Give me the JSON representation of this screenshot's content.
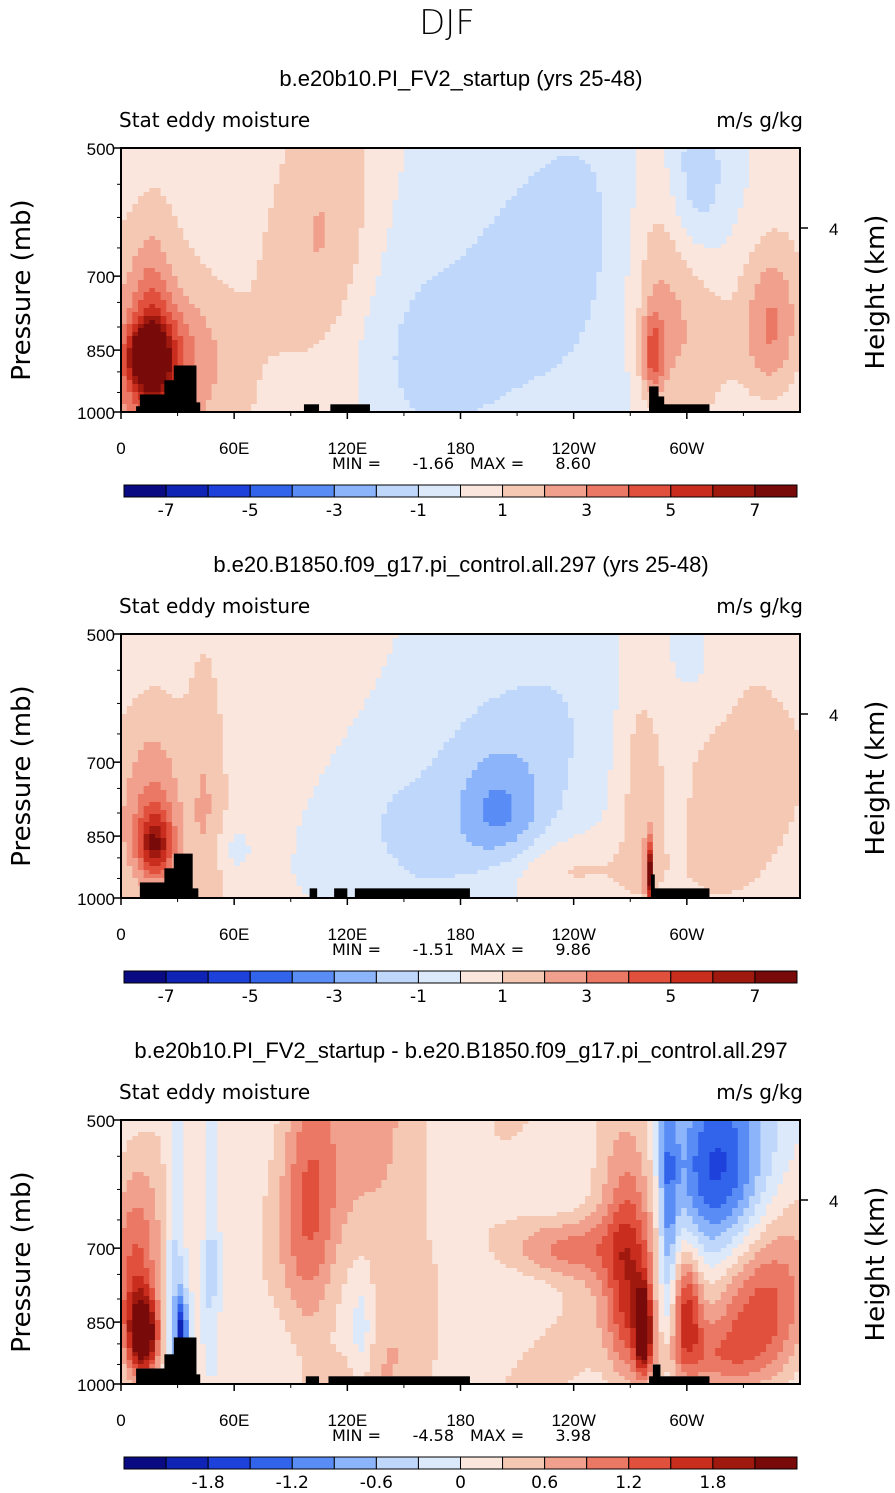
{
  "figure": {
    "title": "DJF"
  },
  "chart_data": [
    {
      "type": "heatmap",
      "title": "b.e20b10.PI_FV2_startup (yrs 25-48)",
      "left_title": "Stat eddy moisture",
      "right_title": "m/s g/kg",
      "ylabel": "Pressure (mb)",
      "y2label": "Height (km)",
      "y_ticks": [
        "500",
        "700",
        "850",
        "1000"
      ],
      "y2_ticks": [
        "4"
      ],
      "x_ticks": [
        "0",
        "60E",
        "120E",
        "180",
        "120W",
        "60W"
      ],
      "ylim": [
        1000,
        500
      ],
      "xlim": [
        0,
        360
      ],
      "stats": {
        "min_label": "MIN =",
        "min": "-1.66",
        "max_label": "MAX =",
        "max": "8.60"
      },
      "colorbar": {
        "colors": [
          "#0a0a82",
          "#0f23b4",
          "#1e41dc",
          "#3264eb",
          "#5a8cf5",
          "#8cb4fa",
          "#bed7fa",
          "#dce9fa",
          "#fae6dc",
          "#f5c8b4",
          "#f0a08c",
          "#eb7864",
          "#e1503c",
          "#c82d1e",
          "#a0190f",
          "#780a0a"
        ],
        "labels": [
          "-7",
          "-5",
          "-3",
          "-1",
          "1",
          "3",
          "5",
          "7"
        ]
      },
      "field": [
        {
          "lon": 0,
          "p": 960,
          "v": 2,
          "w": 70,
          "h": 300
        },
        {
          "lon": 14,
          "p": 865,
          "v": 6.8,
          "w": 9,
          "h": 60
        },
        {
          "lon": 18,
          "p": 900,
          "v": 4,
          "w": 15,
          "h": 140
        },
        {
          "lon": 16,
          "p": 760,
          "v": 1.6,
          "w": 10,
          "h": 150
        },
        {
          "lon": 35,
          "p": 850,
          "v": 1.2,
          "w": 20,
          "h": 120
        },
        {
          "lon": 108,
          "p": 650,
          "v": 1.6,
          "w": 28,
          "h": 260
        },
        {
          "lon": 195,
          "p": 760,
          "v": -1.2,
          "w": 55,
          "h": 450
        },
        {
          "lon": 155,
          "p": 900,
          "v": -1.1,
          "w": 35,
          "h": 200
        },
        {
          "lon": 242,
          "p": 720,
          "v": -1,
          "w": 40,
          "h": 400
        },
        {
          "lon": 282,
          "p": 860,
          "v": 3.4,
          "w": 6,
          "h": 90
        },
        {
          "lon": 285,
          "p": 720,
          "v": 1.2,
          "w": 14,
          "h": 260
        },
        {
          "lon": 305,
          "p": 540,
          "v": -2.2,
          "w": 18,
          "h": 130
        },
        {
          "lon": 300,
          "p": 800,
          "v": 1.5,
          "w": 22,
          "h": 250
        },
        {
          "lon": 345,
          "p": 800,
          "v": 2.6,
          "w": 15,
          "h": 160
        }
      ],
      "field_bias": 0.3,
      "topography": [
        {
          "lon_w": 8,
          "lon_e": 12,
          "p": 985
        },
        {
          "lon_w": 10,
          "lon_e": 24,
          "p": 955
        },
        {
          "lon_w": 23,
          "lon_e": 29,
          "p": 920
        },
        {
          "lon_w": 28,
          "lon_e": 40,
          "p": 885
        },
        {
          "lon_w": 36,
          "lon_e": 42,
          "p": 975
        },
        {
          "lon_w": 97,
          "lon_e": 105,
          "p": 980
        },
        {
          "lon_w": 111,
          "lon_e": 132,
          "p": 980
        },
        {
          "lon_w": 280,
          "lon_e": 285,
          "p": 935
        },
        {
          "lon_w": 282,
          "lon_e": 288,
          "p": 960
        },
        {
          "lon_w": 280,
          "lon_e": 312,
          "p": 980
        }
      ]
    },
    {
      "type": "heatmap",
      "title": "b.e20.B1850.f09_g17.pi_control.all.297 (yrs 25-48)",
      "left_title": "Stat eddy moisture",
      "right_title": "m/s g/kg",
      "ylabel": "Pressure (mb)",
      "y2label": "Height (km)",
      "y_ticks": [
        "500",
        "700",
        "850",
        "1000"
      ],
      "y2_ticks": [
        "4"
      ],
      "x_ticks": [
        "0",
        "60E",
        "120E",
        "180",
        "120W",
        "60W"
      ],
      "ylim": [
        1000,
        500
      ],
      "xlim": [
        0,
        360
      ],
      "stats": {
        "min_label": "MIN =",
        "min": "-1.51",
        "max_label": "MAX =",
        "max": "9.86"
      },
      "colorbar": {
        "colors": [
          "#0a0a82",
          "#0f23b4",
          "#1e41dc",
          "#3264eb",
          "#5a8cf5",
          "#8cb4fa",
          "#bed7fa",
          "#dce9fa",
          "#fae6dc",
          "#f5c8b4",
          "#f0a08c",
          "#eb7864",
          "#e1503c",
          "#c82d1e",
          "#a0190f",
          "#780a0a"
        ],
        "labels": [
          "-7",
          "-5",
          "-3",
          "-1",
          "1",
          "3",
          "5",
          "7"
        ]
      },
      "field": [
        {
          "lon": 0,
          "p": 900,
          "v": 1.3,
          "w": 60,
          "h": 300
        },
        {
          "lon": 18,
          "p": 870,
          "v": 4.5,
          "w": 9,
          "h": 70
        },
        {
          "lon": 18,
          "p": 800,
          "v": 2,
          "w": 14,
          "h": 160
        },
        {
          "lon": 45,
          "p": 760,
          "v": 1.3,
          "w": 10,
          "h": 250
        },
        {
          "lon": 60,
          "p": 880,
          "v": -1,
          "w": 10,
          "h": 60
        },
        {
          "lon": 200,
          "p": 800,
          "v": -2,
          "w": 22,
          "h": 120
        },
        {
          "lon": 210,
          "p": 700,
          "v": -1.3,
          "w": 55,
          "h": 380
        },
        {
          "lon": 150,
          "p": 900,
          "v": -1.1,
          "w": 40,
          "h": 220
        },
        {
          "lon": 235,
          "p": 930,
          "v": 1.3,
          "w": 45,
          "h": 80
        },
        {
          "lon": 280,
          "p": 940,
          "v": 7,
          "w": 2,
          "h": 80
        },
        {
          "lon": 275,
          "p": 760,
          "v": 1.2,
          "w": 12,
          "h": 280
        },
        {
          "lon": 325,
          "p": 700,
          "v": 1.3,
          "w": 40,
          "h": 400
        },
        {
          "lon": 305,
          "p": 530,
          "v": -1.1,
          "w": 20,
          "h": 100
        }
      ],
      "field_bias": 0.2,
      "topography": [
        {
          "lon_w": 10,
          "lon_e": 24,
          "p": 960
        },
        {
          "lon_w": 23,
          "lon_e": 30,
          "p": 925
        },
        {
          "lon_w": 28,
          "lon_e": 38,
          "p": 890
        },
        {
          "lon_w": 36,
          "lon_e": 41,
          "p": 975
        },
        {
          "lon_w": 100,
          "lon_e": 104,
          "p": 975
        },
        {
          "lon_w": 113,
          "lon_e": 120,
          "p": 975
        },
        {
          "lon_w": 124,
          "lon_e": 185,
          "p": 975
        },
        {
          "lon_w": 282,
          "lon_e": 312,
          "p": 975
        },
        {
          "lon_w": 281,
          "lon_e": 283,
          "p": 940
        }
      ]
    },
    {
      "type": "heatmap",
      "title": "b.e20b10.PI_FV2_startup - b.e20.B1850.f09_g17.pi_control.all.297",
      "left_title": "Stat eddy moisture",
      "right_title": "m/s g/kg",
      "ylabel": "Pressure (mb)",
      "y2label": "Height (km)",
      "y_ticks": [
        "500",
        "700",
        "850",
        "1000"
      ],
      "y2_ticks": [
        "4"
      ],
      "x_ticks": [
        "0",
        "60E",
        "120E",
        "180",
        "120W",
        "60W"
      ],
      "ylim": [
        1000,
        500
      ],
      "xlim": [
        0,
        360
      ],
      "stats": {
        "min_label": "MIN =",
        "min": "-4.58",
        "max_label": "MAX =",
        "max": "3.98"
      },
      "colorbar": {
        "colors": [
          "#0a0a82",
          "#0f23b4",
          "#1e41dc",
          "#3264eb",
          "#5a8cf5",
          "#8cb4fa",
          "#bed7fa",
          "#dce9fa",
          "#fae6dc",
          "#f5c8b4",
          "#f0a08c",
          "#eb7864",
          "#e1503c",
          "#c82d1e",
          "#a0190f",
          "#780a0a"
        ],
        "labels": [
          "-1.8",
          "-1.2",
          "-0.6",
          "0",
          "0.6",
          "1.2",
          "1.8"
        ]
      },
      "field": [
        {
          "lon": 12,
          "p": 880,
          "v": 2.3,
          "w": 8,
          "h": 90
        },
        {
          "lon": 8,
          "p": 800,
          "v": 1,
          "w": 12,
          "h": 220
        },
        {
          "lon": 32,
          "p": 880,
          "v": -1.8,
          "w": 3,
          "h": 80
        },
        {
          "lon": 29,
          "p": 720,
          "v": -0.6,
          "w": 5,
          "h": 300
        },
        {
          "lon": 48,
          "p": 700,
          "v": -0.5,
          "w": 4,
          "h": 300
        },
        {
          "lon": 100,
          "p": 650,
          "v": 0.9,
          "w": 15,
          "h": 300
        },
        {
          "lon": 140,
          "p": 700,
          "v": 0.5,
          "w": 25,
          "h": 350
        },
        {
          "lon": 128,
          "p": 880,
          "v": -0.5,
          "w": 6,
          "h": 120
        },
        {
          "lon": 232,
          "p": 700,
          "v": 1,
          "w": 30,
          "h": 60
        },
        {
          "lon": 265,
          "p": 600,
          "v": 0.6,
          "w": 20,
          "h": 200
        },
        {
          "lon": 277,
          "p": 870,
          "v": 2.4,
          "w": 4,
          "h": 90
        },
        {
          "lon": 270,
          "p": 800,
          "v": 1.2,
          "w": 12,
          "h": 200
        },
        {
          "lon": 290,
          "p": 620,
          "v": -1,
          "w": 5,
          "h": 300
        },
        {
          "lon": 315,
          "p": 560,
          "v": -1.6,
          "w": 25,
          "h": 150
        },
        {
          "lon": 300,
          "p": 820,
          "v": 1.4,
          "w": 8,
          "h": 120
        },
        {
          "lon": 340,
          "p": 840,
          "v": 1,
          "w": 25,
          "h": 180
        },
        {
          "lon": 310,
          "p": 930,
          "v": 0.6,
          "w": 30,
          "h": 80
        }
      ],
      "field_bias": 0.15,
      "topography": [
        {
          "lon_w": 8,
          "lon_e": 24,
          "p": 960
        },
        {
          "lon_w": 10,
          "lon_e": 14,
          "p": 985
        },
        {
          "lon_w": 23,
          "lon_e": 30,
          "p": 925
        },
        {
          "lon_w": 28,
          "lon_e": 40,
          "p": 885
        },
        {
          "lon_w": 36,
          "lon_e": 42,
          "p": 975
        },
        {
          "lon_w": 98,
          "lon_e": 105,
          "p": 980
        },
        {
          "lon_w": 110,
          "lon_e": 185,
          "p": 980
        },
        {
          "lon_w": 280,
          "lon_e": 312,
          "p": 980
        },
        {
          "lon_w": 282,
          "lon_e": 286,
          "p": 950
        }
      ]
    }
  ]
}
